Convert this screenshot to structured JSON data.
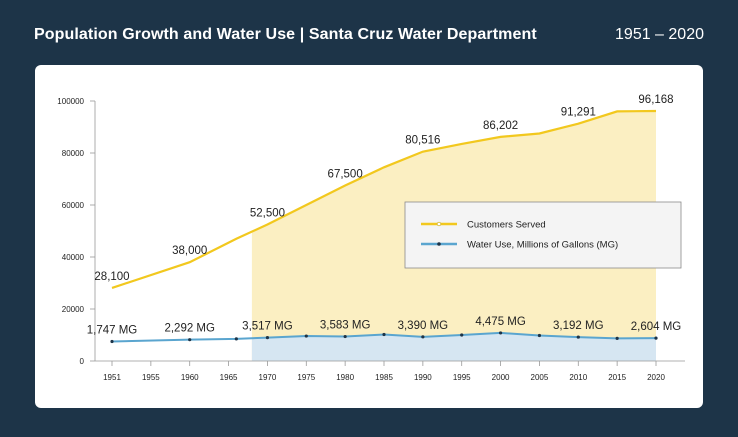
{
  "header": {
    "title": "Population Growth and Water Use | Santa Cruz Water Department",
    "range": "1951 – 2020"
  },
  "chart_data": {
    "type": "line",
    "title": "Population Growth and Water Use | Santa Cruz Water Department",
    "x": [
      1951,
      1960,
      1966,
      1970,
      1975,
      1980,
      1985,
      1990,
      1995,
      2000,
      2005,
      2010,
      2015,
      2020
    ],
    "x_ticks": [
      1951,
      1955,
      1960,
      1965,
      1970,
      1975,
      1980,
      1985,
      1990,
      1995,
      2000,
      2005,
      2010,
      2015,
      2020
    ],
    "y_ticks": [
      0,
      20000,
      40000,
      60000,
      80000,
      100000
    ],
    "ylim": [
      0,
      100000
    ],
    "shade_from_x": 1968,
    "series": [
      {
        "name": "Customers Served",
        "color": "#f2c81e",
        "values": [
          28100,
          38000,
          47000,
          52500,
          60000,
          67500,
          74500,
          80516,
          83500,
          86202,
          87500,
          91291,
          96000,
          96168
        ]
      },
      {
        "name": "Water Use, Millions of Gallons (MG)",
        "color": "#5aa5cf",
        "values": [
          7500,
          8200,
          8500,
          9000,
          9600,
          9400,
          10200,
          9300,
          10000,
          10800,
          9800,
          9200,
          8700,
          8800
        ]
      }
    ],
    "customer_labels": [
      {
        "x": 1951,
        "value": 28100,
        "text": "28,100"
      },
      {
        "x": 1960,
        "value": 38000,
        "text": "38,000"
      },
      {
        "x": 1970,
        "value": 52500,
        "text": "52,500"
      },
      {
        "x": 1980,
        "value": 67500,
        "text": "67,500"
      },
      {
        "x": 1990,
        "value": 80516,
        "text": "80,516"
      },
      {
        "x": 2000,
        "value": 86202,
        "text": "86,202"
      },
      {
        "x": 2010,
        "value": 91291,
        "text": "91,291"
      },
      {
        "x": 2020,
        "value": 96168,
        "text": "96,168"
      }
    ],
    "water_labels": [
      {
        "x": 1951,
        "text": "1,747 MG"
      },
      {
        "x": 1960,
        "text": "2,292 MG"
      },
      {
        "x": 1970,
        "text": "3,517 MG"
      },
      {
        "x": 1980,
        "text": "3,583 MG"
      },
      {
        "x": 1990,
        "text": "3,390 MG"
      },
      {
        "x": 2000,
        "text": "4,475 MG"
      },
      {
        "x": 2010,
        "text": "3,192 MG"
      },
      {
        "x": 2020,
        "text": "2,604 MG"
      }
    ],
    "legend": [
      {
        "label": "Customers Served",
        "color": "#f2c81e"
      },
      {
        "label": "Water Use, Millions of Gallons (MG)",
        "color": "#5aa5cf"
      }
    ],
    "legend_position": "center-right"
  }
}
